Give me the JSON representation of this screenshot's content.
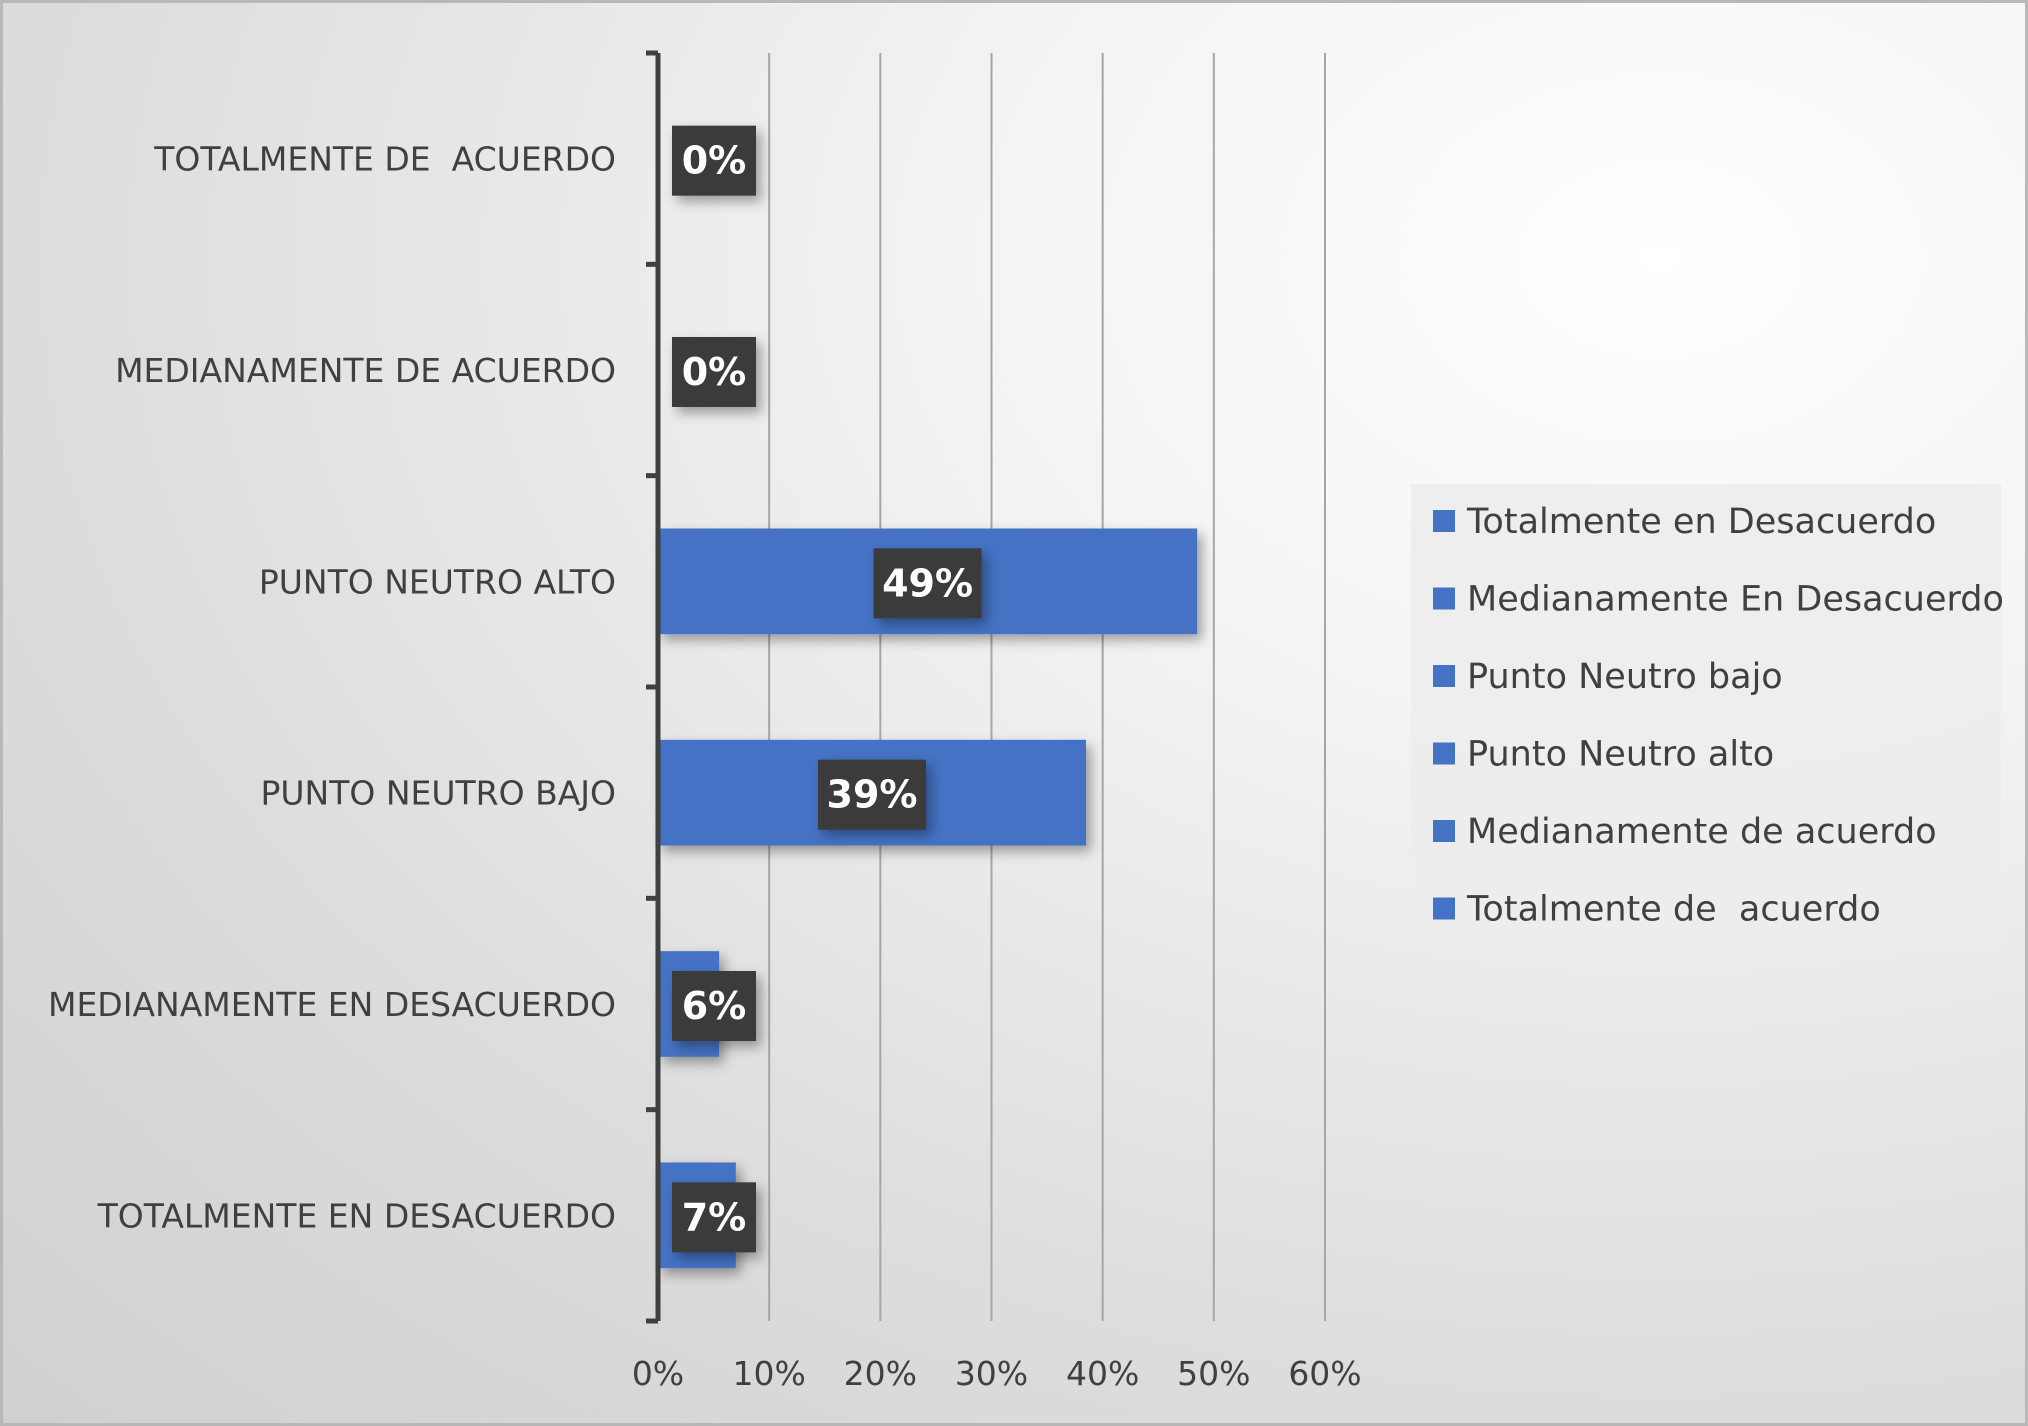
{
  "chart_data": {
    "type": "bar",
    "orientation": "horizontal",
    "categories": [
      "TOTALMENTE EN DESACUERDO",
      "MEDIANAMENTE EN DESACUERDO",
      "PUNTO NEUTRO BAJO",
      "PUNTO NEUTRO ALTO",
      "MEDIANAMENTE DE ACUERDO",
      "TOTALMENTE DE  ACUERDO"
    ],
    "values": [
      0.07,
      0.055,
      0.385,
      0.485,
      0,
      0
    ],
    "data_labels": [
      "7%",
      "6%",
      "39%",
      "49%",
      "0%",
      "0%"
    ],
    "xlim": [
      0,
      0.6
    ],
    "x_ticks": [
      0,
      0.1,
      0.2,
      0.3,
      0.4,
      0.5,
      0.6
    ],
    "x_tick_labels": [
      "0%",
      "10%",
      "20%",
      "30%",
      "40%",
      "50%",
      "60%"
    ],
    "grid": "vertical",
    "legend": {
      "placement": "right",
      "entries": [
        "Totalmente en Desacuerdo",
        "Medianamente En Desacuerdo",
        "Punto Neutro bajo",
        "Punto Neutro alto",
        "Medianamente de acuerdo",
        "Totalmente de  acuerdo"
      ]
    },
    "colors": {
      "bar": "#4472c4",
      "data_label_bg": "#3a3a3a",
      "gridline": "#a6a6a6",
      "axis": "#404040",
      "legend_bg": "#ececec"
    },
    "title": "",
    "xlabel": "",
    "ylabel": ""
  }
}
